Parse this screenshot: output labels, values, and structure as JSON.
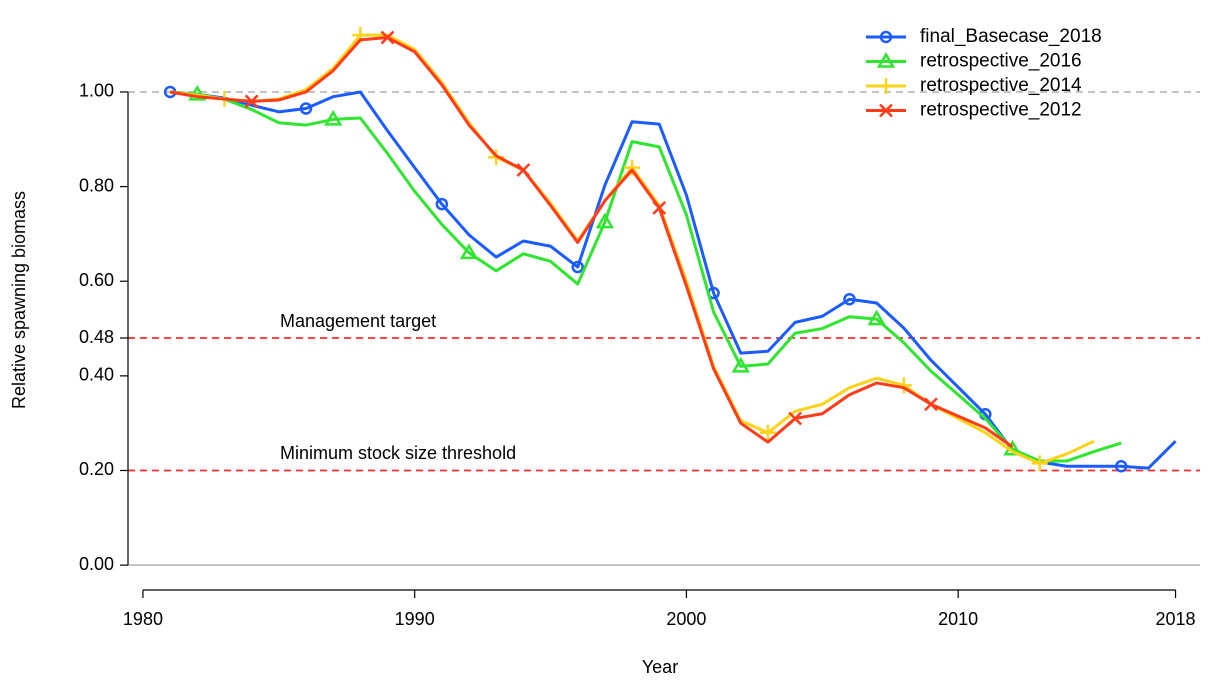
{
  "chart_data": {
    "type": "line",
    "xlabel": "Year",
    "ylabel": "Relative spawning biomass",
    "x": [
      1981,
      1982,
      1983,
      1984,
      1985,
      1986,
      1987,
      1988,
      1989,
      1990,
      1991,
      1992,
      1993,
      1994,
      1995,
      1996,
      1997,
      1998,
      1999,
      2000,
      2001,
      2002,
      2003,
      2004,
      2005,
      2006,
      2007,
      2008,
      2009,
      2010,
      2011,
      2012,
      2013,
      2014,
      2015,
      2016,
      2017,
      2018
    ],
    "series": [
      {
        "name": "final_Basecase_2018",
        "color": "#1a5cff",
        "marker": "circle",
        "values": [
          1.0,
          0.995,
          0.987,
          0.972,
          0.958,
          0.965,
          0.99,
          1.0,
          0.918,
          0.84,
          0.763,
          0.698,
          0.651,
          0.685,
          0.674,
          0.63,
          0.803,
          0.937,
          0.932,
          0.782,
          0.575,
          0.448,
          0.452,
          0.513,
          0.526,
          0.562,
          0.554,
          0.501,
          0.433,
          0.376,
          0.319,
          0.243,
          0.218,
          0.209,
          0.209,
          0.209,
          0.205,
          0.262
        ]
      },
      {
        "name": "retrospective_2016",
        "color": "#2ee62e",
        "marker": "triangle",
        "values": [
          1.0,
          0.995,
          0.985,
          0.963,
          0.935,
          0.93,
          0.942,
          0.945,
          0.87,
          0.79,
          0.72,
          0.66,
          0.622,
          0.658,
          0.642,
          0.594,
          0.725,
          0.895,
          0.884,
          0.74,
          0.535,
          0.42,
          0.425,
          0.49,
          0.5,
          0.525,
          0.52,
          0.47,
          0.41,
          0.36,
          0.31,
          0.245,
          0.22,
          0.22,
          0.24,
          0.258,
          null,
          null
        ]
      },
      {
        "name": "retrospective_2014",
        "color": "#ffd21a",
        "marker": "plus",
        "values": [
          1.0,
          0.993,
          0.985,
          0.98,
          0.985,
          1.005,
          1.05,
          1.12,
          1.12,
          1.09,
          1.02,
          0.935,
          0.862,
          0.835,
          0.765,
          0.685,
          0.77,
          0.84,
          0.76,
          0.6,
          0.42,
          0.305,
          0.28,
          0.325,
          0.34,
          0.375,
          0.395,
          0.38,
          0.34,
          0.31,
          0.28,
          0.24,
          0.215,
          0.235,
          0.262,
          null,
          null,
          null
        ]
      },
      {
        "name": "retrospective_2012",
        "color": "#ff3b1a",
        "marker": "cross",
        "values": [
          1.0,
          0.99,
          0.985,
          0.98,
          0.983,
          1.0,
          1.045,
          1.11,
          1.115,
          1.085,
          1.015,
          0.93,
          0.865,
          0.835,
          0.76,
          0.682,
          0.77,
          0.835,
          0.755,
          0.59,
          0.415,
          0.3,
          0.26,
          0.31,
          0.32,
          0.36,
          0.385,
          0.375,
          0.34,
          0.315,
          0.29,
          0.25,
          null,
          null,
          null,
          null,
          null,
          null
        ]
      }
    ],
    "reference_lines": [
      {
        "value": 1.0,
        "color": "#bbbbbb",
        "style": "dashed"
      },
      {
        "value": 0.48,
        "color": "#ff2a2a",
        "style": "dashed",
        "label": "Management target"
      },
      {
        "value": 0.2,
        "color": "#ff2a2a",
        "style": "dashed",
        "label": "Minimum stock size threshold"
      },
      {
        "value": 0,
        "color": "#bbbbbb",
        "style": "solid"
      }
    ],
    "xlim": [
      1979.45,
      2018.9
    ],
    "ylim": [
      -0.042,
      1.169
    ],
    "xticks": [
      1980,
      1990,
      2000,
      2010,
      2018
    ],
    "yticks": [
      {
        "value": 0,
        "label": "0.00"
      },
      {
        "value": 0.2,
        "label": "0.20"
      },
      {
        "value": 0.4,
        "label": "0.40"
      },
      {
        "value": 0.48,
        "label": "0.48"
      },
      {
        "value": 0.6,
        "label": "0.60"
      },
      {
        "value": 0.8,
        "label": "0.80"
      },
      {
        "value": 1.0,
        "label": "1.00"
      }
    ],
    "legend": "upper right"
  }
}
